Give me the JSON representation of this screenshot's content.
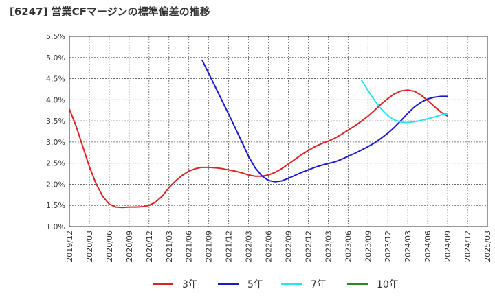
{
  "chart_data": {
    "type": "line",
    "title": "[6247]  営業CFマージンの標準偏差の推移",
    "xlabel": "",
    "ylabel": "",
    "x_ticks": [
      "2019/12",
      "2020/03",
      "2020/06",
      "2020/09",
      "2020/12",
      "2021/03",
      "2021/06",
      "2021/09",
      "2021/12",
      "2022/03",
      "2022/06",
      "2022/09",
      "2022/12",
      "2023/03",
      "2023/06",
      "2023/09",
      "2023/12",
      "2024/03",
      "2024/06",
      "2024/09",
      "2024/12",
      "2025/03"
    ],
    "y_ticks": [
      "1.0%",
      "1.5%",
      "2.0%",
      "2.5%",
      "3.0%",
      "3.5%",
      "4.0%",
      "4.5%",
      "5.0%",
      "5.5%"
    ],
    "ylim": [
      1.0,
      5.5
    ],
    "grid": true,
    "legend_position": "bottom",
    "series": [
      {
        "name": "3年",
        "color": "#dd2222",
        "points": [
          [
            "2019/12",
            3.78
          ],
          [
            "2020/01",
            3.38
          ],
          [
            "2020/02",
            2.9
          ],
          [
            "2020/03",
            2.42
          ],
          [
            "2020/04",
            2.02
          ],
          [
            "2020/05",
            1.72
          ],
          [
            "2020/06",
            1.53
          ],
          [
            "2020/07",
            1.46
          ],
          [
            "2020/08",
            1.45
          ],
          [
            "2020/09",
            1.46
          ],
          [
            "2020/10",
            1.46
          ],
          [
            "2020/11",
            1.47
          ],
          [
            "2020/12",
            1.5
          ],
          [
            "2021/01",
            1.58
          ],
          [
            "2021/02",
            1.72
          ],
          [
            "2021/03",
            1.92
          ],
          [
            "2021/04",
            2.08
          ],
          [
            "2021/05",
            2.21
          ],
          [
            "2021/06",
            2.31
          ],
          [
            "2021/07",
            2.37
          ],
          [
            "2021/08",
            2.4
          ],
          [
            "2021/09",
            2.4
          ],
          [
            "2021/10",
            2.39
          ],
          [
            "2021/11",
            2.37
          ],
          [
            "2021/12",
            2.34
          ],
          [
            "2022/01",
            2.31
          ],
          [
            "2022/02",
            2.27
          ],
          [
            "2022/03",
            2.22
          ],
          [
            "2022/04",
            2.19
          ],
          [
            "2022/05",
            2.19
          ],
          [
            "2022/06",
            2.22
          ],
          [
            "2022/07",
            2.28
          ],
          [
            "2022/08",
            2.37
          ],
          [
            "2022/09",
            2.48
          ],
          [
            "2022/10",
            2.59
          ],
          [
            "2022/11",
            2.7
          ],
          [
            "2022/12",
            2.8
          ],
          [
            "2023/01",
            2.89
          ],
          [
            "2023/02",
            2.96
          ],
          [
            "2023/03",
            3.02
          ],
          [
            "2023/04",
            3.09
          ],
          [
            "2023/05",
            3.18
          ],
          [
            "2023/06",
            3.28
          ],
          [
            "2023/07",
            3.38
          ],
          [
            "2023/08",
            3.49
          ],
          [
            "2023/09",
            3.61
          ],
          [
            "2023/10",
            3.75
          ],
          [
            "2023/11",
            3.9
          ],
          [
            "2023/12",
            4.03
          ],
          [
            "2024/01",
            4.14
          ],
          [
            "2024/02",
            4.21
          ],
          [
            "2024/03",
            4.23
          ],
          [
            "2024/04",
            4.2
          ],
          [
            "2024/05",
            4.11
          ],
          [
            "2024/06",
            3.98
          ],
          [
            "2024/07",
            3.84
          ],
          [
            "2024/08",
            3.71
          ],
          [
            "2024/09",
            3.61
          ]
        ]
      },
      {
        "name": "5年",
        "color": "#1a1acc",
        "points": [
          [
            "2021/08",
            4.94
          ],
          [
            "2021/09",
            4.62
          ],
          [
            "2021/10",
            4.3
          ],
          [
            "2021/11",
            3.98
          ],
          [
            "2021/12",
            3.66
          ],
          [
            "2022/01",
            3.33
          ],
          [
            "2022/02",
            3.0
          ],
          [
            "2022/03",
            2.66
          ],
          [
            "2022/04",
            2.39
          ],
          [
            "2022/05",
            2.2
          ],
          [
            "2022/06",
            2.09
          ],
          [
            "2022/07",
            2.06
          ],
          [
            "2022/08",
            2.08
          ],
          [
            "2022/09",
            2.14
          ],
          [
            "2022/10",
            2.21
          ],
          [
            "2022/11",
            2.28
          ],
          [
            "2022/12",
            2.34
          ],
          [
            "2023/01",
            2.4
          ],
          [
            "2023/02",
            2.45
          ],
          [
            "2023/03",
            2.49
          ],
          [
            "2023/04",
            2.53
          ],
          [
            "2023/05",
            2.59
          ],
          [
            "2023/06",
            2.66
          ],
          [
            "2023/07",
            2.73
          ],
          [
            "2023/08",
            2.81
          ],
          [
            "2023/09",
            2.89
          ],
          [
            "2023/10",
            2.98
          ],
          [
            "2023/11",
            3.09
          ],
          [
            "2023/12",
            3.21
          ],
          [
            "2024/01",
            3.35
          ],
          [
            "2024/02",
            3.51
          ],
          [
            "2024/03",
            3.68
          ],
          [
            "2024/04",
            3.83
          ],
          [
            "2024/05",
            3.94
          ],
          [
            "2024/06",
            4.02
          ],
          [
            "2024/07",
            4.06
          ],
          [
            "2024/08",
            4.08
          ],
          [
            "2024/09",
            4.08
          ]
        ]
      },
      {
        "name": "7年",
        "color": "#22e5f0",
        "points": [
          [
            "2023/08",
            4.47
          ],
          [
            "2023/09",
            4.22
          ],
          [
            "2023/10",
            3.98
          ],
          [
            "2023/11",
            3.78
          ],
          [
            "2023/12",
            3.62
          ],
          [
            "2024/01",
            3.52
          ],
          [
            "2024/02",
            3.47
          ],
          [
            "2024/03",
            3.46
          ],
          [
            "2024/04",
            3.48
          ],
          [
            "2024/05",
            3.51
          ],
          [
            "2024/06",
            3.55
          ],
          [
            "2024/07",
            3.59
          ],
          [
            "2024/08",
            3.64
          ],
          [
            "2024/09",
            3.67
          ]
        ]
      },
      {
        "name": "10年",
        "color": "#228b22",
        "points": []
      }
    ]
  }
}
